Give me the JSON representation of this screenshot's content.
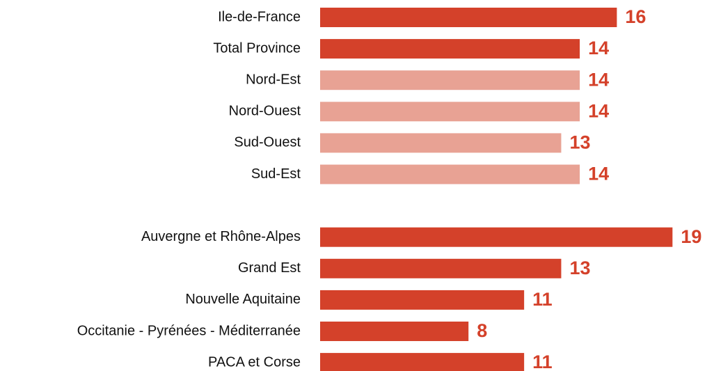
{
  "chart_data": {
    "type": "bar",
    "orientation": "horizontal",
    "categories": [
      "Ile-de-France",
      "Total Province",
      "Nord-Est",
      "Nord-Ouest",
      "Sud-Ouest",
      "Sud-Est",
      null,
      "Auvergne et Rhône-Alpes",
      "Grand Est",
      "Nouvelle Aquitaine",
      "Occitanie - Pyrénées - Méditerranée",
      "PACA et Corse"
    ],
    "values": [
      16,
      14,
      14,
      14,
      13,
      14,
      null,
      19,
      13,
      11,
      8,
      11
    ],
    "colors": [
      "#d4412a",
      "#d4412a",
      "#e8a294",
      "#e8a294",
      "#e8a294",
      "#e8a294",
      null,
      "#d4412a",
      "#d4412a",
      "#d4412a",
      "#d4412a",
      "#d4412a"
    ],
    "value_label_color": "#d4412a",
    "xlim": [
      0,
      20
    ]
  }
}
